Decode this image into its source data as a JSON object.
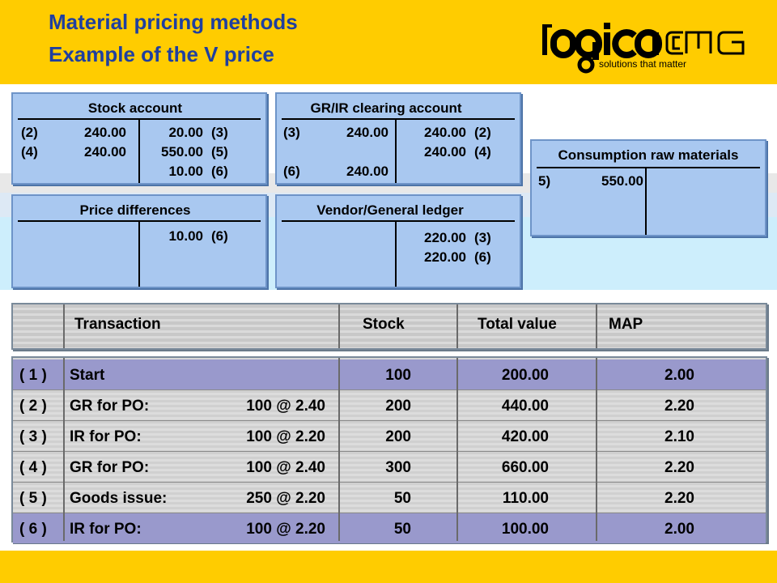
{
  "header": {
    "title_line1": "Material pricing methods",
    "title_line2": "Example of the V price",
    "logo_tagline": "solutions that matter",
    "logo_name": "logicaCMG"
  },
  "colors": {
    "band": "#ffcc00",
    "title": "#1f3fa0",
    "account_fill": "#a9c8f0",
    "row_highlight": "#9999cc"
  },
  "accounts": {
    "stock": {
      "name": "Stock account",
      "debit": [
        {
          "ref": "(2)",
          "amount": "240.00"
        },
        {
          "ref": "(4)",
          "amount": "240.00"
        }
      ],
      "credit": [
        {
          "amount": "20.00",
          "ref": "(3)"
        },
        {
          "amount": "550.00",
          "ref": "(5)"
        },
        {
          "amount": "10.00",
          "ref": "(6)"
        }
      ]
    },
    "grir": {
      "name": "GR/IR clearing account",
      "debit": [
        {
          "ref": "(3)",
          "amount": "240.00"
        },
        {
          "ref": "(6)",
          "amount": "240.00"
        }
      ],
      "credit": [
        {
          "amount": "240.00",
          "ref": "(2)"
        },
        {
          "amount": "240.00",
          "ref": "(4)"
        }
      ]
    },
    "consumption": {
      "name": "Consumption raw materials",
      "debit": [
        {
          "ref": "5)",
          "amount": "550.00"
        }
      ]
    },
    "price_diff": {
      "name": "Price differences",
      "credit": [
        {
          "amount": "10.00",
          "ref": "(6)"
        }
      ]
    },
    "vendor": {
      "name": "Vendor/General ledger",
      "credit": [
        {
          "amount": "220.00",
          "ref": "(3)"
        },
        {
          "amount": "220.00",
          "ref": "(6)"
        }
      ]
    }
  },
  "table": {
    "headers": {
      "transaction": "Transaction",
      "stock": "Stock",
      "total_value": "Total value",
      "map": "MAP"
    },
    "rows": [
      {
        "id": "( 1 )",
        "name": "Start",
        "qty": "",
        "stock": "100",
        "total": "200.00",
        "map": "2.00"
      },
      {
        "id": "( 2 )",
        "name": "GR for PO:",
        "qty": "100 @ 2.40",
        "stock": "200",
        "total": "440.00",
        "map": "2.20"
      },
      {
        "id": "( 3 )",
        "name": "IR for PO:",
        "qty": "100 @ 2.20",
        "stock": "200",
        "total": "420.00",
        "map": "2.10"
      },
      {
        "id": "( 4 )",
        "name": "GR for PO:",
        "qty": "100 @ 2.40",
        "stock": "300",
        "total": "660.00",
        "map": "2.20"
      },
      {
        "id": "( 5 )",
        "name": "Goods issue:",
        "qty": "250 @ 2.20",
        "stock": "50",
        "total": "110.00",
        "map": "2.20"
      },
      {
        "id": "( 6 )",
        "name": "IR for PO:",
        "qty": "100 @ 2.20",
        "stock": "50",
        "total": "100.00",
        "map": "2.00"
      }
    ]
  }
}
